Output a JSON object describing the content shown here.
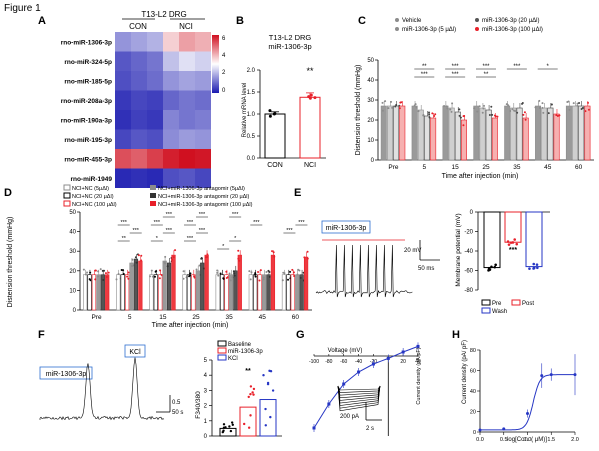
{
  "figure_title": "Figure 1",
  "colors": {
    "gray": "#8c8c8c",
    "red": "#e8202a",
    "blue": "#2636c4",
    "black": "#000000"
  },
  "panels": {
    "A": {
      "letter": "A",
      "title": "T13-L2 DRG",
      "group_con": "CON",
      "group_nci": "NCI",
      "rows": [
        "rno-miR-1306-3p",
        "rno-miR-324-5p",
        "rno-miR-185-5p",
        "rno-miR-208a-3p",
        "rno-miR-190a-3p",
        "rno-miR-195-3p",
        "rno-miR-455-3p",
        "rno-miR-1949"
      ],
      "values": [
        [
          1.6,
          1.8,
          2.0,
          3.6,
          4.2,
          4.0
        ],
        [
          0.8,
          1.0,
          1.2,
          2.2,
          2.6,
          2.4
        ],
        [
          0.7,
          0.9,
          1.1,
          1.6,
          1.8,
          1.7
        ],
        [
          0.4,
          0.6,
          0.5,
          1.0,
          1.2,
          1.1
        ],
        [
          0.3,
          0.5,
          0.4,
          1.4,
          1.2,
          1.3
        ],
        [
          0.6,
          0.8,
          0.7,
          1.5,
          1.7,
          1.6
        ],
        [
          5.2,
          5.0,
          5.4,
          5.8,
          6.0,
          5.9
        ],
        [
          0.2,
          0.3,
          0.2,
          0.7,
          0.8,
          0.6
        ]
      ],
      "scale_ticks": [
        "6",
        "4",
        "2",
        "0"
      ]
    },
    "B": {
      "letter": "B",
      "title1": "T13-L2 DRG",
      "title2": "miR-1306-3p",
      "ylabel": "Relative mRNA level",
      "yticks": [
        "0.0",
        "0.5",
        "1.0",
        "1.5",
        "2.0"
      ],
      "categories": [
        "CON",
        "NCI"
      ],
      "significance": "**"
    },
    "C": {
      "letter": "C",
      "ylabel": "Distension threshold (mmHg)",
      "xlabel": "Time after injection (min)",
      "xticks": [
        "Pre",
        "5",
        "15",
        "25",
        "35",
        "45",
        "60"
      ],
      "yticks": [
        "0",
        "10",
        "20",
        "30",
        "40",
        "50"
      ],
      "legend": [
        "Vehicle",
        "miR-1306-3p (5 μΔl)",
        "miR-1306-3p (20 μΔl)",
        "miR-1306-3p (100 μΔl)"
      ],
      "sig": [
        "**",
        "***",
        "***",
        "***",
        "***",
        "**",
        "***",
        "*"
      ]
    },
    "D": {
      "letter": "D",
      "ylabel": "Distension threshold (mmHg)",
      "xlabel": "Time after injection (min)",
      "xticks": [
        "Pre",
        "5",
        "15",
        "25",
        "35",
        "45",
        "60"
      ],
      "yticks": [
        "0",
        "10",
        "20",
        "30",
        "40",
        "50"
      ],
      "legend": [
        "NCI+NC (5μΔl)",
        "NCI+NC (20 μΔl)",
        "NCI+NC (100 μΔl)",
        "NCI+miR-1306-3p antagomir (5μΔl)",
        "NCI+miR-1306-3p antagomir (20 μΔl)",
        "NCI+miR-1306-3p antagomir (100 μΔl)"
      ],
      "sig": [
        "***",
        "***",
        "**",
        "***",
        "***",
        "***",
        "*",
        "***",
        "***",
        "***",
        "***",
        "*",
        "*",
        "***",
        "***",
        "***",
        "***"
      ]
    },
    "E": {
      "letter": "E",
      "trace_label": "miR-1306-3p",
      "scale_mv": "20 mV",
      "scale_ms": "50 ms",
      "ylabel": "Membrane potential (mV)",
      "yticks": [
        "0",
        "-20",
        "-40",
        "-60",
        "-80"
      ],
      "legend": [
        "Pre",
        "Post",
        "Wash"
      ],
      "significance": "***"
    },
    "F": {
      "letter": "F",
      "trace1": "miR-1306-3p",
      "trace2": "KCl",
      "scale_v": "0.5",
      "scale_s": "50 s",
      "ylabel": "F340/380",
      "yticks": [
        "0",
        "1",
        "2",
        "3",
        "4",
        "5"
      ],
      "legend": [
        "Baseline",
        "miR-1306-3p",
        "KCl"
      ],
      "significance": "**"
    },
    "G": {
      "letter": "G",
      "xlabel": "Voltage (mV)",
      "ylabel": "Current density (pA/pF)",
      "xticks": [
        "-100",
        "-80",
        "-60",
        "-40",
        "-20",
        "20",
        "40"
      ],
      "scale_pa": "200 pA",
      "scale_s": "2 s"
    },
    "H": {
      "letter": "H",
      "ylabel": "Current density (pA/ pF)",
      "xlabel": "log[Con. ( μM)]",
      "xticks": [
        "0.0",
        "0.5",
        "1.0",
        "1.5",
        "2.0"
      ],
      "yticks": [
        "0",
        "20",
        "40",
        "60",
        "80"
      ]
    }
  },
  "chart_data": [
    {
      "type": "heatmap",
      "title": "T13-L2 DRG",
      "rows": [
        "rno-miR-1306-3p",
        "rno-miR-324-5p",
        "rno-miR-185-5p",
        "rno-miR-208a-3p",
        "rno-miR-190a-3p",
        "rno-miR-195-3p",
        "rno-miR-455-3p",
        "rno-miR-1949"
      ],
      "columns": [
        "CON",
        "CON",
        "CON",
        "NCI",
        "NCI",
        "NCI"
      ],
      "range": [
        0,
        6
      ]
    },
    {
      "type": "bar",
      "title": "T13-L2 DRG miR-1306-3p",
      "categories": [
        "CON",
        "NCI"
      ],
      "values": [
        1.0,
        1.38
      ],
      "errors": [
        0.05,
        0.1
      ],
      "ylabel": "Relative mRNA level",
      "ylim": [
        0,
        2.0
      ]
    },
    {
      "type": "bar",
      "categories": [
        "Pre",
        "5",
        "15",
        "25",
        "35",
        "45",
        "60"
      ],
      "series": [
        {
          "name": "Vehicle",
          "values": [
            27,
            27,
            27,
            27,
            27,
            27,
            27
          ]
        },
        {
          "name": "miR-1306-3p (5 μΔl)",
          "values": [
            27,
            25,
            26,
            26,
            26,
            26,
            27
          ]
        },
        {
          "name": "miR-1306-3p (20 μΔl)",
          "values": [
            27,
            22,
            24,
            25,
            26,
            26,
            27
          ]
        },
        {
          "name": "miR-1306-3p (100 μΔl)",
          "values": [
            27,
            21,
            20,
            21,
            21,
            23,
            27
          ]
        }
      ],
      "xlabel": "Time after injection (min)",
      "ylabel": "Distension threshold (mmHg)",
      "ylim": [
        0,
        50
      ]
    },
    {
      "type": "bar",
      "categories": [
        "Pre",
        "5",
        "15",
        "25",
        "35",
        "45",
        "60"
      ],
      "series": [
        {
          "name": "NCI+NC (5μΔl)",
          "values": [
            18,
            18,
            18,
            18,
            18,
            18,
            18
          ]
        },
        {
          "name": "NCI+NC (20 μΔl)",
          "values": [
            18,
            18,
            18,
            18,
            18,
            18,
            18
          ]
        },
        {
          "name": "NCI+NC (100 μΔl)",
          "values": [
            18,
            18,
            18,
            18,
            18,
            18,
            18
          ]
        },
        {
          "name": "NCI+miR-1306-3p antagomir (5μΔl)",
          "values": [
            18,
            24,
            25,
            20,
            18,
            18,
            18
          ]
        },
        {
          "name": "NCI+miR-1306-3p antagomir (20 μΔl)",
          "values": [
            18,
            26,
            24,
            24,
            20,
            18,
            18
          ]
        },
        {
          "name": "NCI+miR-1306-3p antagomir (100 μΔl)",
          "values": [
            18,
            25,
            28,
            28,
            28,
            28,
            27
          ]
        }
      ],
      "xlabel": "Time after injection (min)",
      "ylabel": "Distension threshold (mmHg)",
      "ylim": [
        0,
        50
      ]
    },
    {
      "type": "bar",
      "categories": [
        "Pre",
        "Post",
        "Wash"
      ],
      "values": [
        -57,
        -31,
        -56
      ],
      "ylabel": "Membrane potential (mV)",
      "ylim": [
        -80,
        0
      ]
    },
    {
      "type": "bar",
      "categories": [
        "Baseline",
        "miR-1306-3p",
        "KCl"
      ],
      "values": [
        0.5,
        1.9,
        2.4
      ],
      "ylabel": "F340/380",
      "ylim": [
        0,
        5
      ]
    },
    {
      "type": "line",
      "xlabel": "Voltage (mV)",
      "ylabel": "Current density (pA/pF)",
      "x": [
        -100,
        -80,
        -60,
        -40,
        -20,
        0,
        20,
        40
      ],
      "y": [
        -90,
        -60,
        -35,
        -20,
        -10,
        -3,
        5,
        12
      ]
    },
    {
      "type": "line",
      "xlabel": "log[Con. ( μM)]",
      "ylabel": "Current density (pA/ pF)",
      "x": [
        0.0,
        0.5,
        1.0,
        1.3,
        1.5,
        2.0
      ],
      "y": [
        2,
        3,
        18,
        55,
        56,
        56
      ],
      "xlim": [
        0,
        2
      ],
      "ylim": [
        0,
        80
      ]
    }
  ]
}
